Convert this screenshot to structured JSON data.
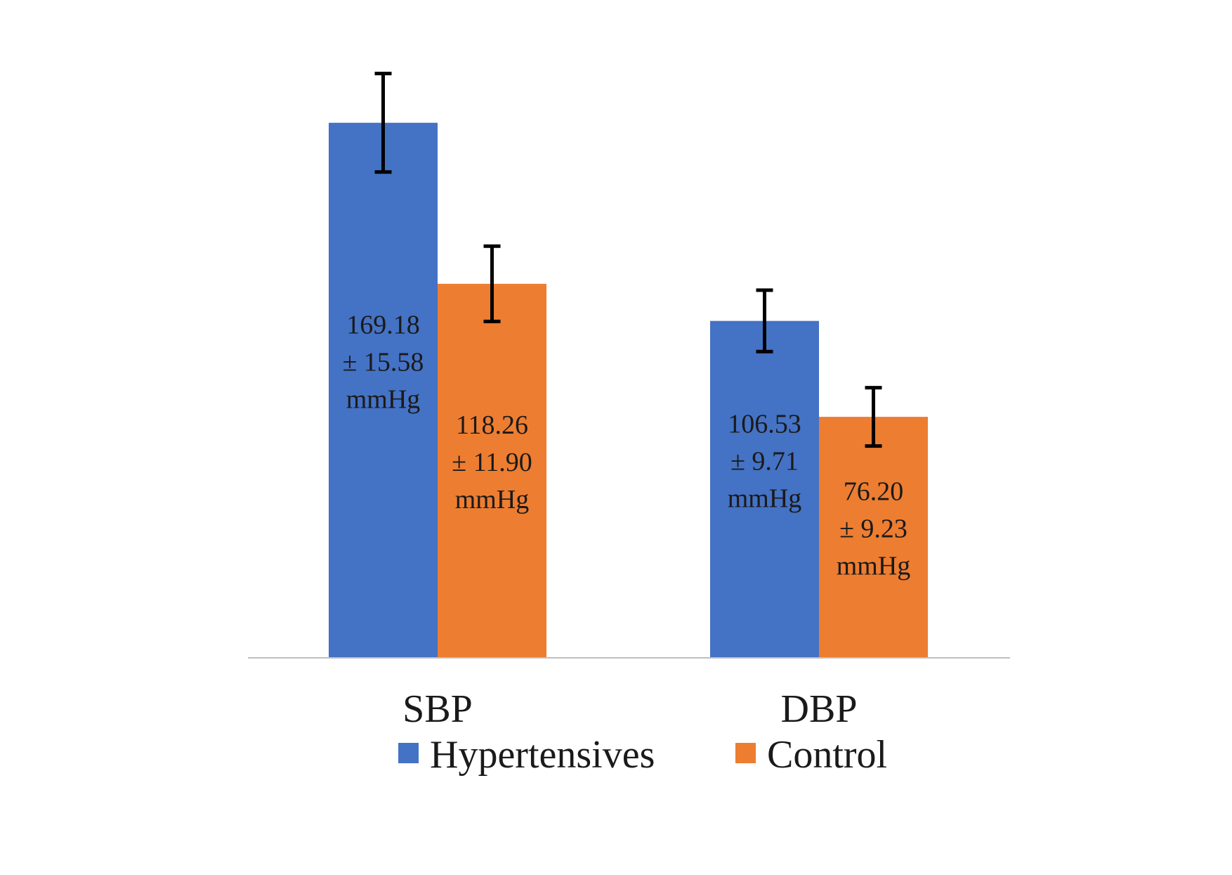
{
  "chart_data": {
    "type": "bar",
    "title": "",
    "xlabel": "",
    "ylabel": "",
    "categories": [
      "SBP",
      "DBP"
    ],
    "ylim": [
      0,
      200
    ],
    "grid": false,
    "legend_position": "bottom",
    "series": [
      {
        "name": "Hypertensives",
        "color": "#4472C4",
        "values": [
          169.18,
          106.53
        ],
        "errors": [
          15.58,
          9.71
        ],
        "labels": [
          [
            "169.18",
            "± 15.58",
            "mmHg"
          ],
          [
            "106.53",
            "± 9.71",
            "mmHg"
          ]
        ]
      },
      {
        "name": "Control",
        "color": "#ED7D31",
        "values": [
          118.26,
          76.2
        ],
        "errors": [
          11.9,
          9.23
        ],
        "labels": [
          [
            "118.26",
            "± 11.90",
            "mmHg"
          ],
          [
            "76.20",
            "± 9.23",
            "mmHg"
          ]
        ]
      }
    ]
  }
}
